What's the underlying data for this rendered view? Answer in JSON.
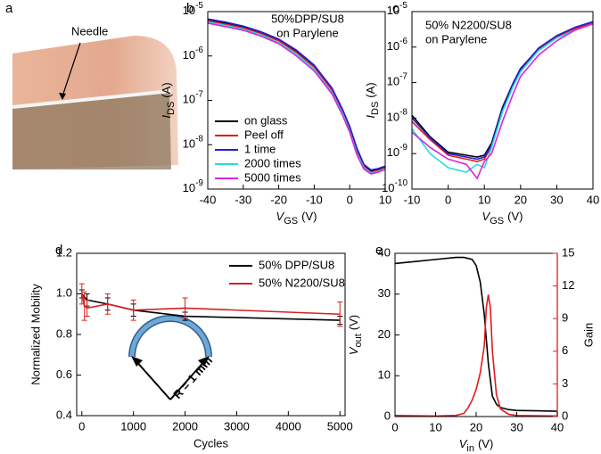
{
  "photo": {
    "label": "a",
    "annotation": "Needle"
  },
  "chart_data": [
    {
      "type": "line",
      "panel_label": "b",
      "ylog": true,
      "xlim": [
        -40,
        10
      ],
      "xticks": [
        -40,
        -30,
        -20,
        -10,
        0,
        10
      ],
      "ylim": [
        1e-09,
        1e-05
      ],
      "yticks": [
        {
          "value": 1e-09,
          "label": "10",
          "exponent": "-9"
        },
        {
          "value": 1e-08,
          "label": "10",
          "exponent": "-8"
        },
        {
          "value": 1e-07,
          "label": "10",
          "exponent": "-7"
        },
        {
          "value": 1e-06,
          "label": "10",
          "exponent": "-6"
        },
        {
          "value": 1e-05,
          "label": "10",
          "exponent": "-5"
        }
      ],
      "xlabel": {
        "main": "V",
        "sub": "GS",
        "rest": "(V)"
      },
      "ylabel": {
        "main": "I",
        "sub": "DS",
        "rest": "(A)"
      },
      "annotation": [
        "50%DPP/SU8",
        "on Parylene"
      ],
      "legend": "lower left",
      "series": [
        {
          "name": "on glass",
          "color": "#000000",
          "x": [
            -40,
            -35,
            -30,
            -25,
            -20,
            -15,
            -10,
            -5,
            -2,
            0,
            2,
            4,
            6,
            8,
            10
          ],
          "values": [
            6.5e-06,
            5.5e-06,
            4.5e-06,
            3.4e-06,
            2.3e-06,
            1.3e-06,
            6e-07,
            1.8e-07,
            6e-08,
            2.5e-08,
            8e-09,
            3.5e-09,
            2.6e-09,
            2.8e-09,
            3.2e-09
          ]
        },
        {
          "name": "Peel off",
          "color": "#e41a1c",
          "x": [
            -40,
            -35,
            -30,
            -25,
            -20,
            -15,
            -10,
            -5,
            -2,
            0,
            2,
            4,
            6,
            8,
            10
          ],
          "values": [
            6.2e-06,
            5.2e-06,
            4.3e-06,
            3.2e-06,
            2.2e-06,
            1.2e-06,
            5.6e-07,
            1.7e-07,
            5.6e-08,
            2.3e-08,
            7e-09,
            3.2e-09,
            2.4e-09,
            2.6e-09,
            3e-09
          ]
        },
        {
          "name": "1 time",
          "color": "#1f1fd8",
          "x": [
            -40,
            -35,
            -30,
            -25,
            -20,
            -15,
            -10,
            -5,
            -2,
            0,
            2,
            4,
            6,
            8,
            10
          ],
          "values": [
            6.8e-06,
            5.8e-06,
            4.7e-06,
            3.5e-06,
            2.4e-06,
            1.35e-06,
            6.2e-07,
            1.9e-07,
            6.2e-08,
            2.6e-08,
            8.5e-09,
            3.6e-09,
            2.7e-09,
            2.9e-09,
            3.3e-09
          ]
        },
        {
          "name": "2000 times",
          "color": "#22dddd",
          "x": [
            -40,
            -35,
            -30,
            -25,
            -20,
            -15,
            -10,
            -5,
            -2,
            0,
            2,
            4,
            6,
            8,
            10
          ],
          "values": [
            5.8e-06,
            4.9e-06,
            4e-06,
            3e-06,
            2e-06,
            1.1e-06,
            5e-07,
            1.5e-07,
            5e-08,
            2e-08,
            6.5e-09,
            3e-09,
            2.3e-09,
            2.5e-09,
            2.9e-09
          ]
        },
        {
          "name": "5000 times",
          "color": "#dd22dd",
          "x": [
            -40,
            -35,
            -30,
            -25,
            -20,
            -15,
            -10,
            -5,
            -2,
            0,
            2,
            4,
            6,
            8,
            10
          ],
          "values": [
            5.5e-06,
            4.6e-06,
            3.8e-06,
            2.8e-06,
            1.9e-06,
            1e-06,
            4.6e-07,
            1.4e-07,
            4.6e-08,
            1.9e-08,
            6e-09,
            2.8e-09,
            2.2e-09,
            2.4e-09,
            2.8e-09
          ]
        }
      ]
    },
    {
      "type": "line",
      "panel_label": "c",
      "ylog": true,
      "xlim": [
        -10,
        40
      ],
      "xticks": [
        -10,
        0,
        10,
        20,
        30,
        40
      ],
      "ylim": [
        1e-10,
        1e-05
      ],
      "yticks": [
        {
          "value": 1e-10,
          "label": "10",
          "exponent": "-10"
        },
        {
          "value": 1e-09,
          "label": "10",
          "exponent": "-9"
        },
        {
          "value": 1e-08,
          "label": "10",
          "exponent": "-8"
        },
        {
          "value": 1e-07,
          "label": "10",
          "exponent": "-7"
        },
        {
          "value": 1e-06,
          "label": "10",
          "exponent": "-6"
        },
        {
          "value": 1e-05,
          "label": "10",
          "exponent": "-5"
        }
      ],
      "xlabel": {
        "main": "V",
        "sub": "GS",
        "rest": "(V)"
      },
      "ylabel": {
        "main": "I",
        "sub": "DS",
        "rest": "(A)"
      },
      "annotation": [
        "50% N2200/SU8",
        "on Parylene"
      ],
      "series": [
        {
          "color": "#000000",
          "x": [
            -10,
            -5,
            0,
            5,
            8,
            10,
            12,
            15,
            18,
            20,
            25,
            30,
            35,
            40
          ],
          "values": [
            1.2e-08,
            3e-09,
            1.1e-09,
            9e-10,
            8e-10,
            9e-10,
            2e-09,
            2e-08,
            1e-07,
            2.5e-07,
            9e-07,
            2e-06,
            3.5e-06,
            5e-06
          ]
        },
        {
          "color": "#e41a1c",
          "x": [
            -10,
            -5,
            0,
            5,
            8,
            10,
            12,
            15,
            18,
            20,
            25,
            30,
            35,
            40
          ],
          "values": [
            8e-09,
            2.5e-09,
            9e-10,
            7e-10,
            6e-10,
            7e-10,
            1.6e-09,
            1.7e-08,
            9e-08,
            2.2e-07,
            8.5e-07,
            1.9e-06,
            3.3e-06,
            4.8e-06
          ]
        },
        {
          "color": "#1f1fd8",
          "x": [
            -10,
            -5,
            0,
            5,
            8,
            10,
            12,
            15,
            18,
            20,
            25,
            30,
            35,
            40
          ],
          "values": [
            1e-08,
            2.8e-09,
            1e-09,
            8e-10,
            7e-10,
            8e-10,
            1.8e-09,
            1.8e-08,
            9.5e-08,
            2.4e-07,
            9.5e-07,
            2.1e-06,
            3.6e-06,
            5.2e-06
          ]
        },
        {
          "color": "#22dddd",
          "x": [
            -10,
            -5,
            0,
            5,
            8,
            10,
            12,
            15,
            18,
            20,
            25,
            30,
            35,
            40
          ],
          "values": [
            5e-09,
            1e-09,
            4e-10,
            3e-10,
            5e-10,
            4e-10,
            1.5e-09,
            1.5e-08,
            8e-08,
            2e-07,
            8e-07,
            1.8e-06,
            3e-06,
            4.5e-06
          ]
        },
        {
          "color": "#dd22dd",
          "x": [
            -10,
            -5,
            0,
            5,
            8,
            10,
            12,
            15,
            18,
            20,
            25,
            30,
            35,
            40
          ],
          "values": [
            4e-09,
            1.5e-09,
            7e-10,
            5e-10,
            2e-10,
            6e-10,
            1e-09,
            8e-09,
            5e-08,
            1.5e-07,
            6e-07,
            1.5e-06,
            3e-06,
            4.5e-06
          ]
        }
      ]
    },
    {
      "type": "line",
      "panel_label": "d",
      "xlim": [
        -100,
        5100
      ],
      "xticks": [
        0,
        1000,
        2000,
        3000,
        4000,
        5000
      ],
      "ylim": [
        0.4,
        1.2
      ],
      "yticks": [
        0.4,
        0.6,
        0.8,
        {
          "value": 1,
          "label": "1.0"
        },
        1.2
      ],
      "xlabel": "Cycles",
      "ylabel": "Normalized Mobility",
      "legend": "upper right",
      "annotation": [
        "R = 1 mm"
      ],
      "series": [
        {
          "name": "50% DPP/SU8",
          "color": "#000000",
          "x": [
            0,
            100,
            500,
            1000,
            2000,
            5000
          ],
          "values": [
            1.0,
            0.97,
            0.95,
            0.92,
            0.89,
            0.87
          ],
          "errors": [
            0.02,
            0.03,
            0.03,
            0.03,
            0.02,
            0.02
          ]
        },
        {
          "name": "50% N2200/SU8",
          "color": "#d62020",
          "x": [
            0,
            50,
            100,
            500,
            1000,
            2000,
            5000
          ],
          "values": [
            1.0,
            0.94,
            0.93,
            0.95,
            0.92,
            0.93,
            0.9
          ],
          "errors": [
            0.05,
            0.07,
            0.04,
            0.05,
            0.05,
            0.05,
            0.06
          ]
        }
      ]
    },
    {
      "type": "line",
      "panel_label": "e",
      "xlim": [
        0,
        40
      ],
      "xticks": [
        0,
        10,
        20,
        30,
        40
      ],
      "ylim": [
        0,
        40
      ],
      "yticks": [
        0,
        10,
        20,
        30,
        40
      ],
      "y2lim": [
        0,
        15
      ],
      "y2ticks": [
        0,
        3,
        6,
        9,
        12,
        15
      ],
      "xlabel": {
        "main": "V",
        "sub": "in",
        "rest": "(V)"
      },
      "ylabel": {
        "main": "V",
        "sub": "out",
        "rest": "(V)"
      },
      "y2label": "Gain",
      "series": [
        {
          "color": "#000000",
          "x": [
            0,
            5,
            10,
            15,
            17,
            19,
            20,
            21,
            22,
            23,
            24,
            25,
            26,
            28,
            30,
            35,
            40
          ],
          "values": [
            37.5,
            38,
            38.5,
            39,
            39,
            38.5,
            37,
            33,
            25,
            13,
            5,
            3,
            2.2,
            1.7,
            1.5,
            1.4,
            1.3
          ]
        },
        {
          "color": "#e41a1c",
          "axis": "y2",
          "x": [
            0,
            10,
            15,
            17,
            18,
            19,
            20,
            21,
            22,
            22.5,
            23,
            23.5,
            24,
            25,
            26,
            28,
            30,
            40
          ],
          "values": [
            0.1,
            0.05,
            0.1,
            0.3,
            0.8,
            1.5,
            2.5,
            4,
            6.5,
            10,
            11.2,
            10,
            6,
            2,
            0.7,
            0.2,
            0.1,
            0.05
          ]
        }
      ]
    }
  ]
}
